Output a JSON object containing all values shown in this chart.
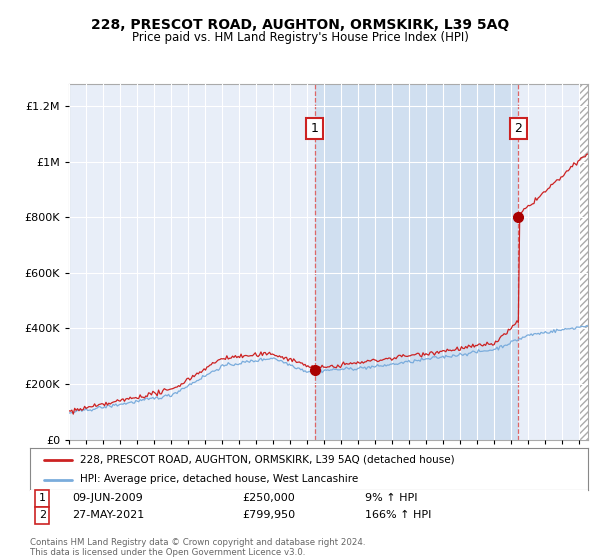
{
  "title": "228, PRESCOT ROAD, AUGHTON, ORMSKIRK, L39 5AQ",
  "subtitle": "Price paid vs. HM Land Registry's House Price Index (HPI)",
  "legend_line1": "228, PRESCOT ROAD, AUGHTON, ORMSKIRK, L39 5AQ (detached house)",
  "legend_line2": "HPI: Average price, detached house, West Lancashire",
  "annotation1_label": "1",
  "annotation1_date": "09-JUN-2009",
  "annotation1_price": "£250,000",
  "annotation1_hpi": "9% ↑ HPI",
  "annotation2_label": "2",
  "annotation2_date": "27-MAY-2021",
  "annotation2_price": "£799,950",
  "annotation2_hpi": "166% ↑ HPI",
  "footnote": "Contains HM Land Registry data © Crown copyright and database right 2024.\nThis data is licensed under the Open Government Licence v3.0.",
  "hpi_color": "#7aacdc",
  "price_color": "#cc2222",
  "marker_color": "#aa0000",
  "annotation_box_color": "#cc2222",
  "vline_color": "#dd6666",
  "background_color": "#ffffff",
  "plot_bg_color": "#e8eef8",
  "shaded_region_color": "#d0dff0",
  "hatch_color": "#cccccc",
  "grid_color": "#ffffff",
  "ylim": [
    0,
    1280000
  ],
  "yticks": [
    0,
    200000,
    400000,
    600000,
    800000,
    1000000,
    1200000
  ],
  "sale1_x": 2009.44,
  "sale1_y": 250000,
  "sale2_x": 2021.41,
  "sale2_y": 799950,
  "xmin": 1995.0,
  "xmax": 2025.5
}
